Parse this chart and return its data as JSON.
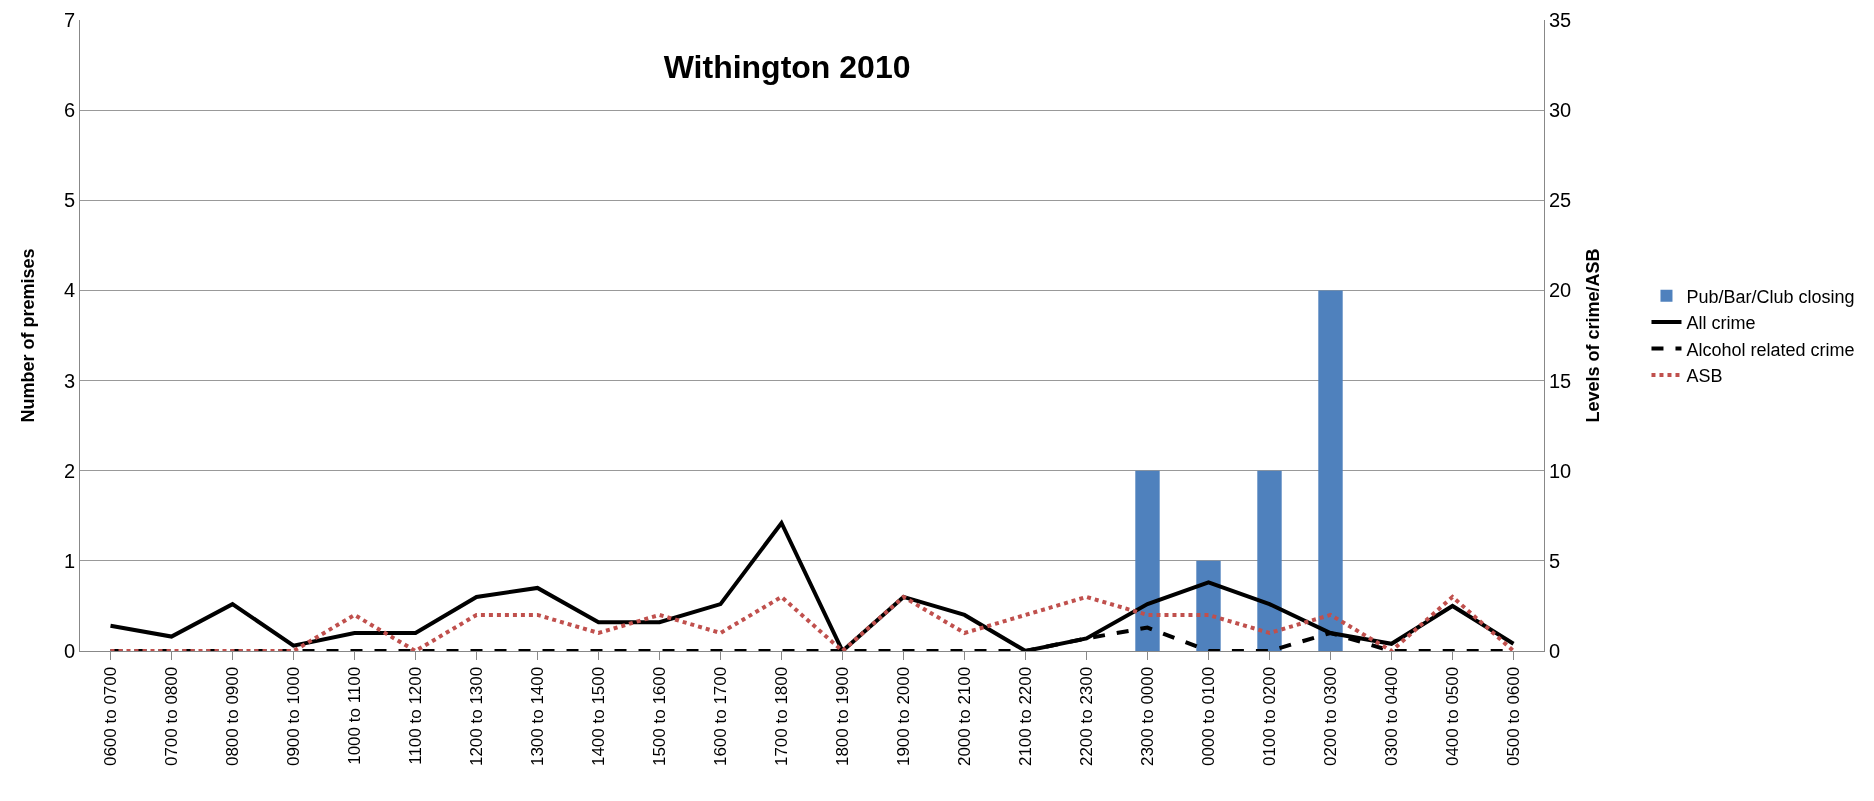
{
  "chart_data": {
    "type": "bar",
    "title": "Withington 2010",
    "ylabel": "Number of premises",
    "y2label": "Levels of crime/ASB",
    "categories": [
      "0600 to 0700",
      "0700 to 0800",
      "0800 to 0900",
      "0900 to 1000",
      "1000 to 1100",
      "1100 to 1200",
      "1200 to 1300",
      "1300 to 1400",
      "1400 to 1500",
      "1500 to 1600",
      "1600 to 1700",
      "1700 to 1800",
      "1800 to 1900",
      "1900 to 2000",
      "2000 to 2100",
      "2100 to 2200",
      "2200 to 2300",
      "2300 to 0000",
      "0000 to 0100",
      "0100 to 0200",
      "0200 to 0300",
      "0300 to 0400",
      "0400 to 0500",
      "0500 to 0600"
    ],
    "series": [
      {
        "name": "Pub/Bar/Club closing",
        "color": "#4f81bd",
        "values": [
          0,
          0,
          0,
          0,
          0,
          0,
          0,
          0,
          0,
          0,
          0,
          0,
          0,
          0,
          0,
          0,
          0,
          2,
          1,
          2,
          4,
          0,
          0,
          0
        ]
      },
      {
        "name": "All crime",
        "type": "line",
        "axis": "y2",
        "color": "#000000",
        "line_style": "solid",
        "values": [
          1.4,
          0.8,
          2.6,
          0.3,
          1,
          1,
          3,
          3.5,
          1.6,
          1.6,
          2.6,
          7.1,
          0,
          3,
          2,
          0,
          0.7,
          2.6,
          3.8,
          2.6,
          1,
          0.4,
          2.5,
          0.4
        ]
      },
      {
        "name": "Alcohol related crime",
        "type": "line",
        "axis": "y2",
        "color": "#000000",
        "line_style": "dashed",
        "values": [
          0,
          0,
          0,
          0,
          0,
          0,
          0,
          0,
          0,
          0,
          0,
          0,
          0,
          0,
          0,
          0,
          0.7,
          1.3,
          0,
          0,
          1,
          0,
          0,
          0
        ]
      },
      {
        "name": "ASB",
        "type": "line",
        "axis": "y2",
        "color": "#c0504d",
        "line_style": "dotted",
        "values": [
          0,
          0,
          0,
          0,
          2,
          0,
          2,
          2,
          1,
          2,
          1,
          3,
          0,
          3,
          1,
          2,
          3,
          2,
          2,
          1,
          2,
          0,
          3,
          0
        ]
      }
    ],
    "ylim": [
      0,
      7
    ],
    "yticks": [
      0,
      1,
      2,
      3,
      4,
      5,
      6,
      7
    ],
    "y2lim": [
      0,
      35
    ],
    "y2ticks": [
      0,
      5,
      10,
      15,
      20,
      25,
      30,
      35
    ],
    "grid": "y",
    "legend": "right"
  }
}
